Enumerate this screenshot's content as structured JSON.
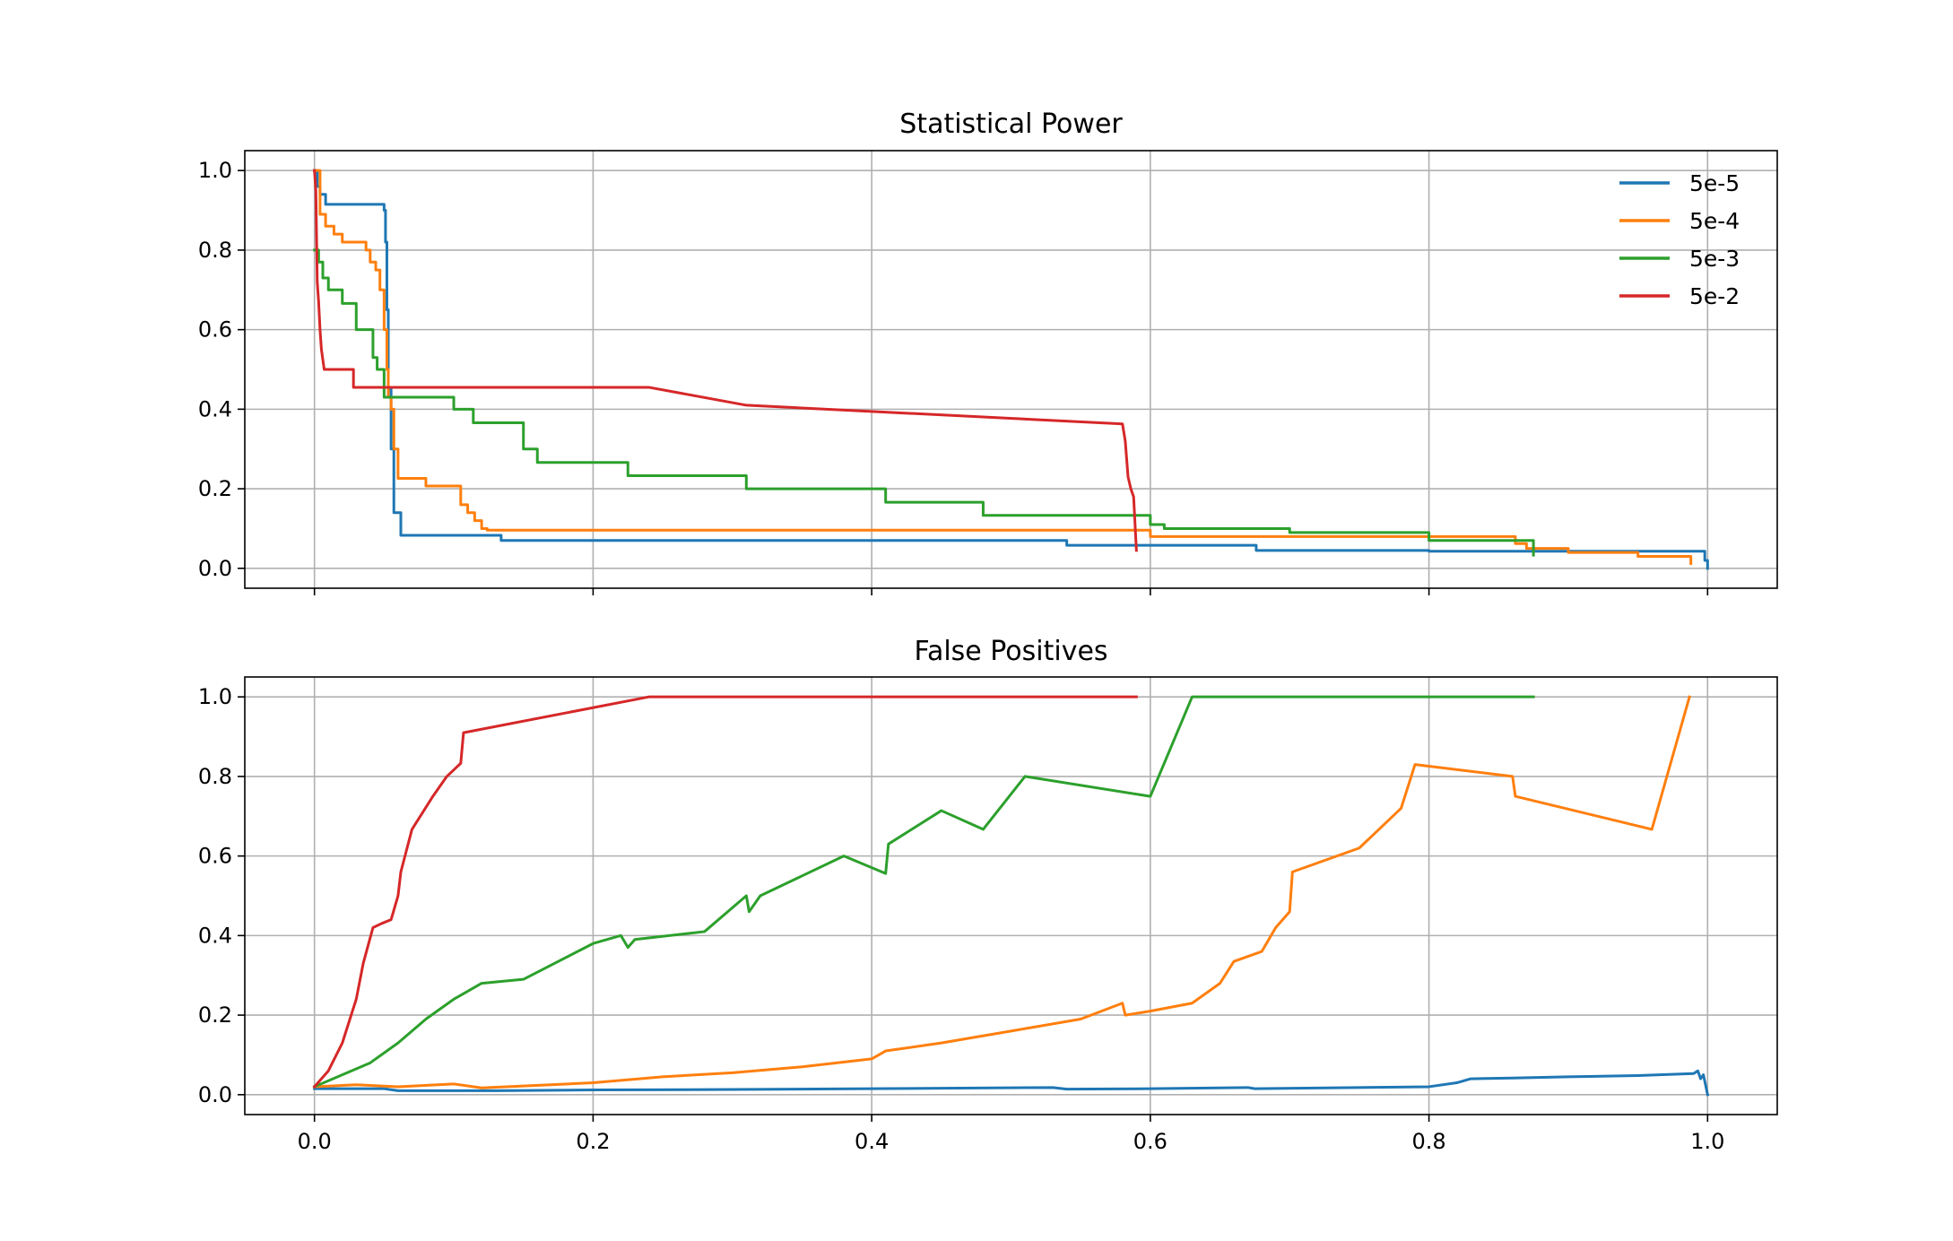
{
  "chart_data": [
    {
      "type": "line",
      "title": "Statistical Power",
      "xlabel": "",
      "ylabel": "",
      "xlim": [
        -0.05,
        1.05
      ],
      "ylim": [
        -0.05,
        1.05
      ],
      "xticks": [
        "0.0",
        "0.2",
        "0.4",
        "0.6",
        "0.8",
        "1.0"
      ],
      "xtick_values": [
        0.0,
        0.2,
        0.4,
        0.6,
        0.8,
        1.0
      ],
      "xtick_labels_visible": false,
      "yticks": [
        "0.0",
        "0.2",
        "0.4",
        "0.6",
        "0.8",
        "1.0"
      ],
      "ytick_values": [
        0.0,
        0.2,
        0.4,
        0.6,
        0.8,
        1.0
      ],
      "grid": true,
      "legend": {
        "placement": "upper right"
      },
      "series": [
        {
          "name": "5e-5",
          "color": "#1f77b4",
          "step": true,
          "x": [
            0.0,
            0.002,
            0.004,
            0.008,
            0.05,
            0.051,
            0.052,
            0.053,
            0.055,
            0.057,
            0.06,
            0.062,
            0.1,
            0.134,
            0.2,
            0.3,
            0.4,
            0.54,
            0.6,
            0.676,
            0.8,
            0.9,
            0.995,
            0.998,
            1.0
          ],
          "y": [
            1.0,
            0.96,
            0.94,
            0.915,
            0.9,
            0.82,
            0.65,
            0.45,
            0.3,
            0.14,
            0.14,
            0.083,
            0.083,
            0.07,
            0.07,
            0.07,
            0.07,
            0.058,
            0.058,
            0.045,
            0.043,
            0.043,
            0.043,
            0.02,
            0.0
          ]
        },
        {
          "name": "5e-4",
          "color": "#ff7f0e",
          "step": true,
          "x": [
            0.0,
            0.004,
            0.008,
            0.014,
            0.02,
            0.037,
            0.04,
            0.044,
            0.047,
            0.05,
            0.052,
            0.053,
            0.055,
            0.057,
            0.06,
            0.064,
            0.08,
            0.105,
            0.11,
            0.115,
            0.12,
            0.124,
            0.2,
            0.3,
            0.5,
            0.58,
            0.6,
            0.8,
            0.862,
            0.87,
            0.9,
            0.95,
            0.985,
            0.988
          ],
          "y": [
            1.0,
            0.89,
            0.86,
            0.84,
            0.82,
            0.8,
            0.77,
            0.75,
            0.7,
            0.6,
            0.5,
            0.43,
            0.4,
            0.3,
            0.226,
            0.226,
            0.207,
            0.16,
            0.14,
            0.12,
            0.1,
            0.096,
            0.096,
            0.096,
            0.096,
            0.096,
            0.08,
            0.08,
            0.062,
            0.05,
            0.04,
            0.03,
            0.03,
            0.012
          ]
        },
        {
          "name": "5e-3",
          "color": "#2ca02c",
          "step": true,
          "x": [
            0.0,
            0.003,
            0.006,
            0.01,
            0.02,
            0.03,
            0.035,
            0.042,
            0.045,
            0.05,
            0.053,
            0.1,
            0.114,
            0.15,
            0.16,
            0.21,
            0.225,
            0.3,
            0.31,
            0.38,
            0.41,
            0.45,
            0.48,
            0.51,
            0.6,
            0.61,
            0.63,
            0.7,
            0.8,
            0.875
          ],
          "y": [
            0.8,
            0.77,
            0.73,
            0.7,
            0.666,
            0.6,
            0.6,
            0.53,
            0.5,
            0.43,
            0.43,
            0.4,
            0.366,
            0.3,
            0.266,
            0.266,
            0.233,
            0.233,
            0.2,
            0.2,
            0.166,
            0.166,
            0.133,
            0.133,
            0.11,
            0.1,
            0.1,
            0.09,
            0.07,
            0.033
          ]
        },
        {
          "name": "5e-2",
          "color": "#d62728",
          "step": false,
          "x": [
            0.0,
            0.001,
            0.002,
            0.003,
            0.004,
            0.005,
            0.007,
            0.028,
            0.028,
            0.24,
            0.31,
            0.58,
            0.582,
            0.584,
            0.586,
            0.588,
            0.59
          ],
          "y": [
            1.0,
            0.95,
            0.72,
            0.67,
            0.6,
            0.55,
            0.5,
            0.5,
            0.455,
            0.455,
            0.41,
            0.363,
            0.32,
            0.23,
            0.2,
            0.18,
            0.045
          ]
        }
      ]
    },
    {
      "type": "line",
      "title": "False Positives",
      "xlabel": "",
      "ylabel": "",
      "xlim": [
        -0.05,
        1.05
      ],
      "ylim": [
        -0.05,
        1.05
      ],
      "xticks": [
        "0.0",
        "0.2",
        "0.4",
        "0.6",
        "0.8",
        "1.0"
      ],
      "xtick_values": [
        0.0,
        0.2,
        0.4,
        0.6,
        0.8,
        1.0
      ],
      "xtick_labels_visible": true,
      "yticks": [
        "0.0",
        "0.2",
        "0.4",
        "0.6",
        "0.8",
        "1.0"
      ],
      "ytick_values": [
        0.0,
        0.2,
        0.4,
        0.6,
        0.8,
        1.0
      ],
      "grid": true,
      "series": [
        {
          "name": "5e-5",
          "color": "#1f77b4",
          "step": false,
          "x": [
            0.0,
            0.05,
            0.06,
            0.13,
            0.2,
            0.3,
            0.4,
            0.53,
            0.54,
            0.6,
            0.67,
            0.675,
            0.8,
            0.82,
            0.83,
            0.86,
            0.9,
            0.95,
            0.99,
            0.993,
            0.995,
            0.997,
            1.0
          ],
          "y": [
            0.015,
            0.015,
            0.01,
            0.01,
            0.012,
            0.013,
            0.015,
            0.018,
            0.014,
            0.015,
            0.018,
            0.015,
            0.02,
            0.03,
            0.04,
            0.042,
            0.045,
            0.048,
            0.053,
            0.06,
            0.04,
            0.05,
            0.0
          ]
        },
        {
          "name": "5e-4",
          "color": "#ff7f0e",
          "step": false,
          "x": [
            0.0,
            0.03,
            0.06,
            0.1,
            0.12,
            0.2,
            0.25,
            0.3,
            0.35,
            0.4,
            0.41,
            0.45,
            0.5,
            0.55,
            0.58,
            0.582,
            0.6,
            0.63,
            0.65,
            0.66,
            0.68,
            0.69,
            0.7,
            0.702,
            0.75,
            0.78,
            0.79,
            0.86,
            0.862,
            0.96,
            0.987
          ],
          "y": [
            0.02,
            0.025,
            0.02,
            0.027,
            0.017,
            0.03,
            0.045,
            0.055,
            0.07,
            0.09,
            0.11,
            0.13,
            0.16,
            0.19,
            0.23,
            0.2,
            0.21,
            0.23,
            0.28,
            0.335,
            0.36,
            0.42,
            0.46,
            0.56,
            0.62,
            0.72,
            0.83,
            0.8,
            0.75,
            0.667,
            1.0
          ]
        },
        {
          "name": "5e-3",
          "color": "#2ca02c",
          "step": false,
          "x": [
            0.0,
            0.02,
            0.04,
            0.06,
            0.08,
            0.1,
            0.12,
            0.15,
            0.2,
            0.22,
            0.225,
            0.23,
            0.28,
            0.31,
            0.312,
            0.32,
            0.35,
            0.38,
            0.41,
            0.412,
            0.45,
            0.48,
            0.51,
            0.6,
            0.63,
            0.875
          ],
          "y": [
            0.02,
            0.05,
            0.08,
            0.13,
            0.19,
            0.24,
            0.28,
            0.29,
            0.38,
            0.4,
            0.37,
            0.39,
            0.41,
            0.5,
            0.46,
            0.5,
            0.55,
            0.6,
            0.556,
            0.63,
            0.714,
            0.667,
            0.8,
            0.75,
            1.0,
            1.0
          ]
        },
        {
          "name": "5e-2",
          "color": "#d62728",
          "step": false,
          "x": [
            0.0,
            0.01,
            0.02,
            0.03,
            0.035,
            0.042,
            0.048,
            0.055,
            0.06,
            0.062,
            0.07,
            0.085,
            0.095,
            0.105,
            0.107,
            0.24,
            0.59
          ],
          "y": [
            0.02,
            0.06,
            0.13,
            0.24,
            0.33,
            0.42,
            0.43,
            0.44,
            0.5,
            0.56,
            0.667,
            0.75,
            0.8,
            0.833,
            0.91,
            1.0,
            1.0
          ]
        }
      ]
    }
  ]
}
